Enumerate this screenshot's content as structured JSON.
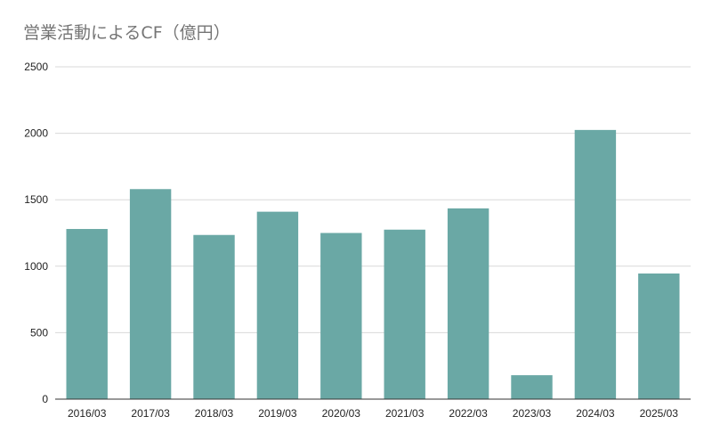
{
  "chart_data": {
    "type": "bar",
    "title": "営業活動によるCF（億円）",
    "categories": [
      "2016/03",
      "2017/03",
      "2018/03",
      "2019/03",
      "2020/03",
      "2021/03",
      "2022/03",
      "2023/03",
      "2024/03",
      "2025/03"
    ],
    "series": [
      {
        "values": [
          1280,
          1580,
          1235,
          1410,
          1250,
          1275,
          1435,
          180,
          2025,
          945
        ]
      }
    ],
    "y_ticks": [
      "0",
      "500",
      "1000",
      "1500",
      "2000",
      "2500"
    ],
    "ylim": [
      0,
      2500
    ],
    "grid": true,
    "legend": "none",
    "bar_color": "#6aa8a5",
    "grid_color": "#d9d9d9",
    "axis_color": "#333333"
  }
}
